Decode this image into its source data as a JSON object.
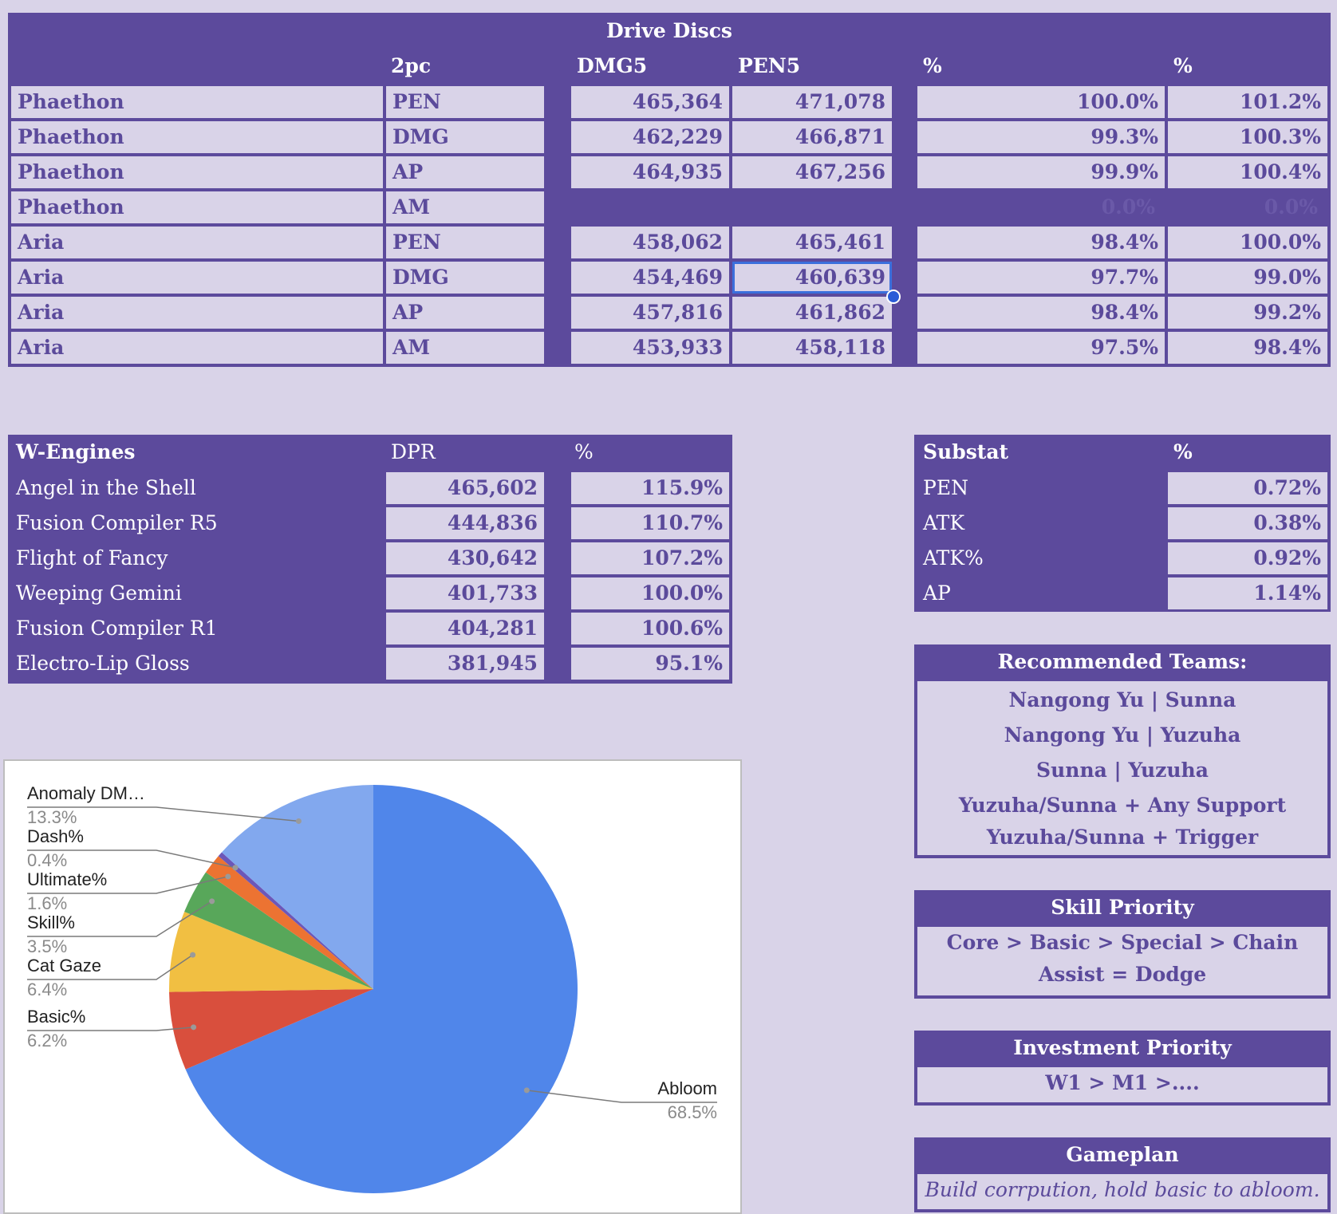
{
  "drive_discs": {
    "title": "Drive Discs",
    "headers": {
      "col1": "2pc",
      "col2": "DMG5",
      "col3": "PEN5",
      "col4": "%",
      "col5": "%"
    },
    "rows": [
      {
        "name": "Phaethon",
        "set": "PEN",
        "dmg5": "465,364",
        "pen5": "471,078",
        "pct1": "100.0%",
        "pct2": "101.2%"
      },
      {
        "name": "Phaethon",
        "set": "DMG",
        "dmg5": "462,229",
        "pen5": "466,871",
        "pct1": "99.3%",
        "pct2": "100.3%"
      },
      {
        "name": "Phaethon",
        "set": "AP",
        "dmg5": "464,935",
        "pen5": "467,256",
        "pct1": "99.9%",
        "pct2": "100.4%"
      },
      {
        "name": "Phaethon",
        "set": "AM",
        "dmg5": "",
        "pen5": "",
        "pct1": "0.0%",
        "pct2": "0.0%"
      },
      {
        "name": "Aria",
        "set": "PEN",
        "dmg5": "458,062",
        "pen5": "465,461",
        "pct1": "98.4%",
        "pct2": "100.0%"
      },
      {
        "name": "Aria",
        "set": "DMG",
        "dmg5": "454,469",
        "pen5": "460,639",
        "pct1": "97.7%",
        "pct2": "99.0%"
      },
      {
        "name": "Aria",
        "set": "AP",
        "dmg5": "457,816",
        "pen5": "461,862",
        "pct1": "98.4%",
        "pct2": "99.2%"
      },
      {
        "name": "Aria",
        "set": "AM",
        "dmg5": "453,933",
        "pen5": "458,118",
        "pct1": "97.5%",
        "pct2": "98.4%"
      }
    ]
  },
  "wengines": {
    "headers": {
      "name": "W-Engines",
      "dpr": "DPR",
      "pct": "%"
    },
    "rows": [
      {
        "name": "Angel in the Shell",
        "dpr": "465,602",
        "pct": "115.9%"
      },
      {
        "name": "Fusion Compiler R5",
        "dpr": "444,836",
        "pct": "110.7%"
      },
      {
        "name": "Flight of Fancy",
        "dpr": "430,642",
        "pct": "107.2%"
      },
      {
        "name": "Weeping Gemini",
        "dpr": "401,733",
        "pct": "100.0%"
      },
      {
        "name": "Fusion Compiler R1",
        "dpr": "404,281",
        "pct": "100.6%"
      },
      {
        "name": "Electro-Lip Gloss",
        "dpr": "381,945",
        "pct": "95.1%"
      }
    ]
  },
  "substat": {
    "headers": {
      "name": "Substat",
      "pct": "%"
    },
    "rows": [
      {
        "name": "PEN",
        "pct": "0.72%"
      },
      {
        "name": "ATK",
        "pct": "0.38%"
      },
      {
        "name": "ATK%",
        "pct": "0.92%"
      },
      {
        "name": "AP",
        "pct": "1.14%"
      }
    ]
  },
  "teams": {
    "title": "Recommended Teams:",
    "lines": [
      "Nangong Yu | Sunna",
      "Nangong Yu | Yuzuha",
      "Sunna | Yuzuha",
      "Yuzuha/Sunna + Any Support",
      "Yuzuha/Sunna + Trigger"
    ]
  },
  "skill_priority": {
    "title": "Skill Priority",
    "lines": [
      "Core > Basic > Special > Chain",
      "Assist = Dodge"
    ]
  },
  "investment_priority": {
    "title": "Investment Priority",
    "lines": [
      "W1 > M1 >...."
    ]
  },
  "gameplan": {
    "title": "Gameplan",
    "text": "Build corrpution, hold basic to abloom."
  },
  "colors": {
    "accent": "#5c4a9c",
    "cell_bg": "#d9d3e8",
    "text": "#5b4a9b",
    "selection": "#3b6fdc"
  },
  "chart_data": {
    "type": "pie",
    "title": "",
    "slices": [
      {
        "label": "Abloom",
        "display_label": "Abloom",
        "value": 68.5,
        "pct_text": "68.5%",
        "color": "#5086ea"
      },
      {
        "label": "Basic%",
        "display_label": "Basic%",
        "value": 6.2,
        "pct_text": "6.2%",
        "color": "#d94f3d"
      },
      {
        "label": "Cat Gaze",
        "display_label": "Cat Gaze",
        "value": 6.4,
        "pct_text": "6.4%",
        "color": "#f1bf42"
      },
      {
        "label": "Skill%",
        "display_label": "Skill%",
        "value": 3.5,
        "pct_text": "3.5%",
        "color": "#58a75a"
      },
      {
        "label": "Ultimate%",
        "display_label": "Ultimate%",
        "value": 1.6,
        "pct_text": "1.6%",
        "color": "#ec7332"
      },
      {
        "label": "Dash%",
        "display_label": "Dash%",
        "value": 0.4,
        "pct_text": "0.4%",
        "color": "#6c57b8"
      },
      {
        "label": "Anomaly DMG%",
        "display_label": "Anomaly DM…",
        "value": 13.3,
        "pct_text": "13.3%",
        "color": "#82a8ee"
      }
    ],
    "legend_position": "labels"
  }
}
